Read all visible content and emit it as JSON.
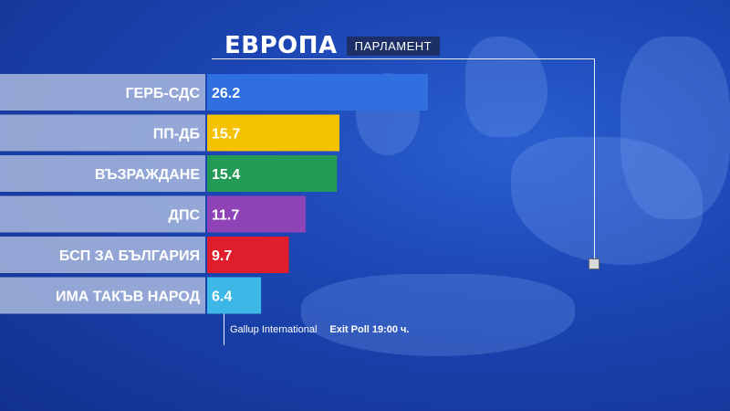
{
  "header": {
    "title": "ЕВРОПА",
    "subtitle": "ПАРЛАМЕНТ"
  },
  "footer": {
    "source": "Gallup International",
    "poll": "Exit Poll  19:00 ч."
  },
  "chart_data": {
    "type": "bar",
    "orientation": "horizontal",
    "categories": [
      "ГЕРБ-СДС",
      "ПП-ДБ",
      "ВЪЗРАЖДАНЕ",
      "ДПС",
      "БСП ЗА БЪЛГАРИЯ",
      "ИМА ТАКЪВ НАРОД"
    ],
    "values": [
      26.2,
      15.7,
      15.4,
      11.7,
      9.7,
      6.4
    ],
    "value_labels": [
      "26.2",
      "15.7",
      "15.4",
      "11.7",
      "9.7",
      "6.4"
    ],
    "colors": [
      "#2f6fe0",
      "#f5c200",
      "#239a55",
      "#8e44b6",
      "#e01e2b",
      "#3db8e6"
    ],
    "xlim": [
      0,
      30
    ],
    "grid": false,
    "legend": "none"
  }
}
